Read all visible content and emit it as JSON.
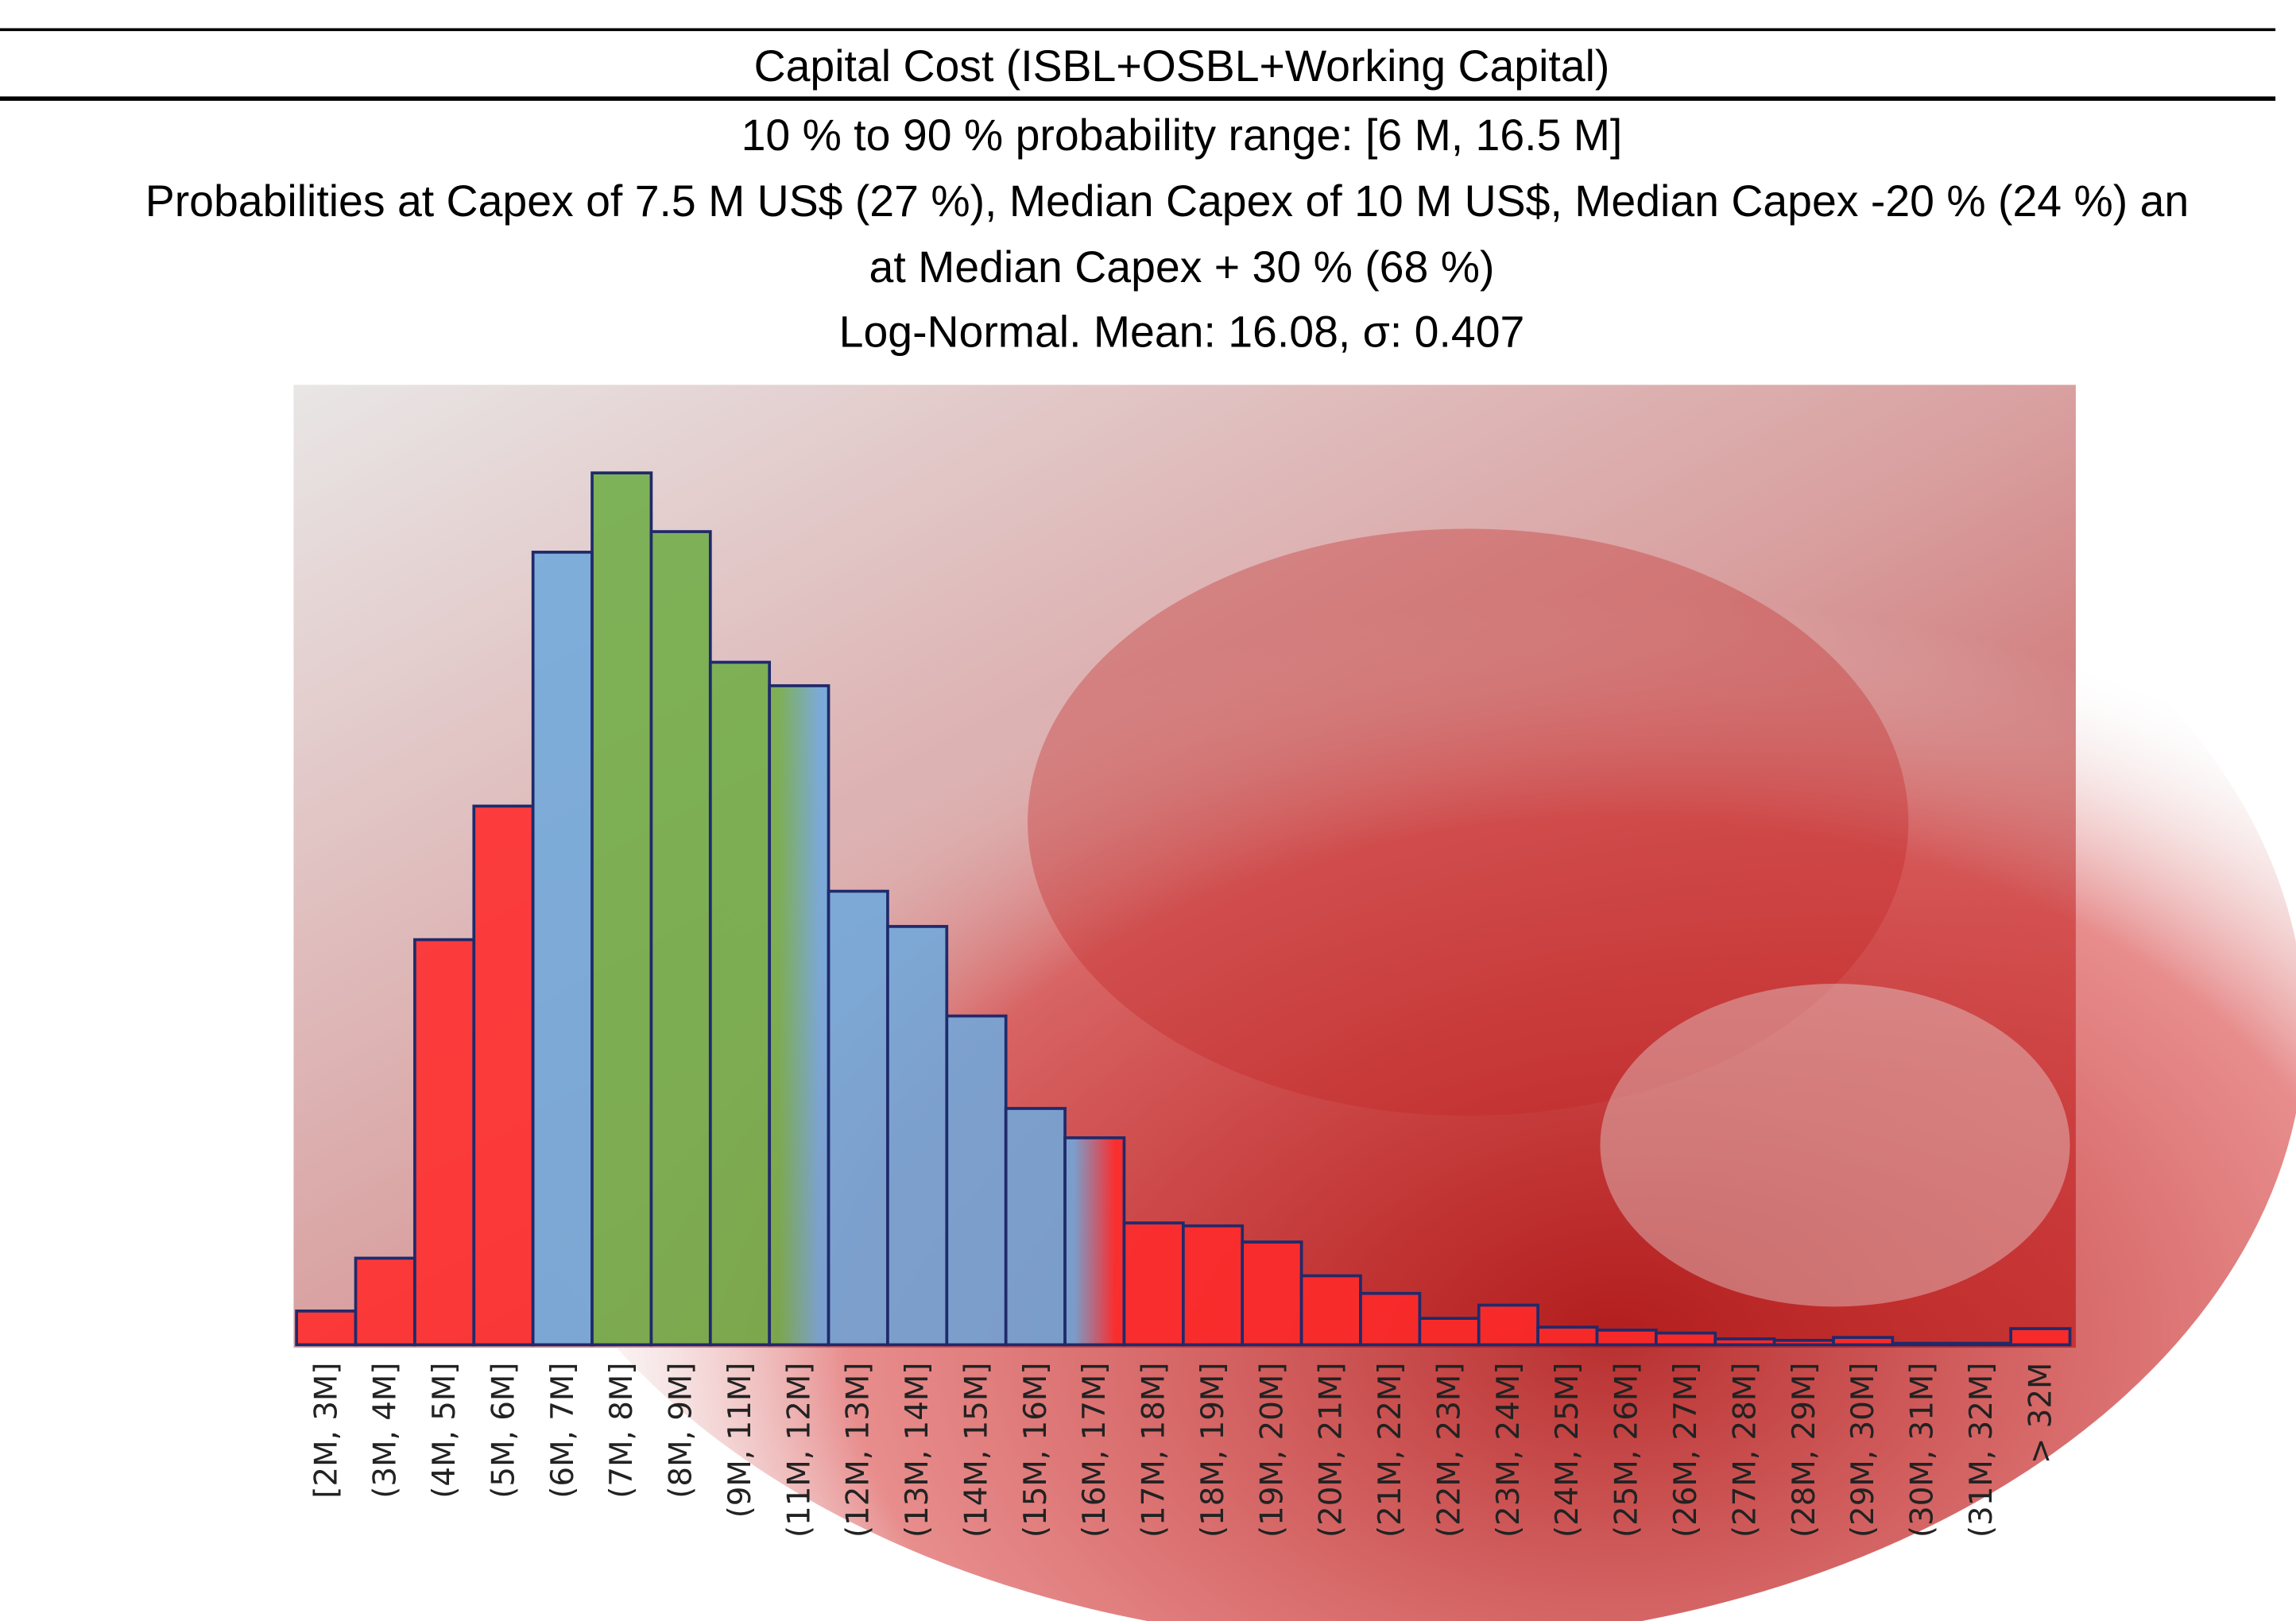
{
  "chart_data": {
    "type": "bar",
    "title": "Capital Cost (ISBL+OSBL+Working Capital)",
    "subtitles": [
      "10 % to 90 % probability range: [6 M, 16.5 M]",
      "Probabilities at Capex of 7.5 M US$ (27 %), Median Capex of 10 M US$, Median Capex -20 % (24 %) an",
      "at Median Capex + 30 % (68 %)",
      "Log-Normal. Mean: 16.08, σ: 0.407"
    ],
    "categories": [
      "[2M, 3M]",
      "(3M, 4M]",
      "(4M, 5M]",
      "(5M, 6M]",
      "(6M, 7M]",
      "(7M, 8M]",
      "(8M, 9M]",
      "(9M, 11M]",
      "(11M, 12M]",
      "(12M, 13M]",
      "(13M, 14M]",
      "(14M, 15M]",
      "(15M, 16M]",
      "(16M, 17M]",
      "(17M, 18M]",
      "(18M, 19M]",
      "(19M, 20M]",
      "(20M, 21M]",
      "(21M, 22M]",
      "(22M, 23M]",
      "(23M, 24M]",
      "(24M, 25M]",
      "(25M, 26M]",
      "(26M, 27M]",
      "(27M, 28M]",
      "(28M, 29M]",
      "(29M, 30M]",
      "(30M, 31M]",
      "(31M, 32M]",
      "> 32M"
    ],
    "values": [
      23,
      59,
      276,
      367,
      540,
      594,
      554,
      465,
      449,
      309,
      285,
      224,
      161,
      141,
      83,
      81,
      70,
      47,
      35,
      18,
      27,
      12,
      10,
      8,
      4,
      3,
      5,
      1,
      1,
      11
    ],
    "colors": [
      "#ff2a2a",
      "#ff2a2a",
      "#ff2a2a",
      "#ff2a2a",
      "#6fa8dc",
      "#70ad47",
      "#70ad47",
      "#70ad47",
      [
        "#70ad47",
        "#6fa8dc"
      ],
      "#6fa8dc",
      "#6fa8dc",
      "#6fa8dc",
      "#6fa8dc",
      [
        "#6fa8dc",
        "#ff2a2a"
      ],
      "#ff2a2a",
      "#ff2a2a",
      "#ff2a2a",
      "#ff2a2a",
      "#ff2a2a",
      "#ff2a2a",
      "#ff2a2a",
      "#ff2a2a",
      "#ff2a2a",
      "#ff2a2a",
      "#ff2a2a",
      "#ff2a2a",
      "#ff2a2a",
      "#ff2a2a",
      "#ff2a2a",
      "#ff2a2a"
    ],
    "edge_color": "#1f2a6b"
  }
}
